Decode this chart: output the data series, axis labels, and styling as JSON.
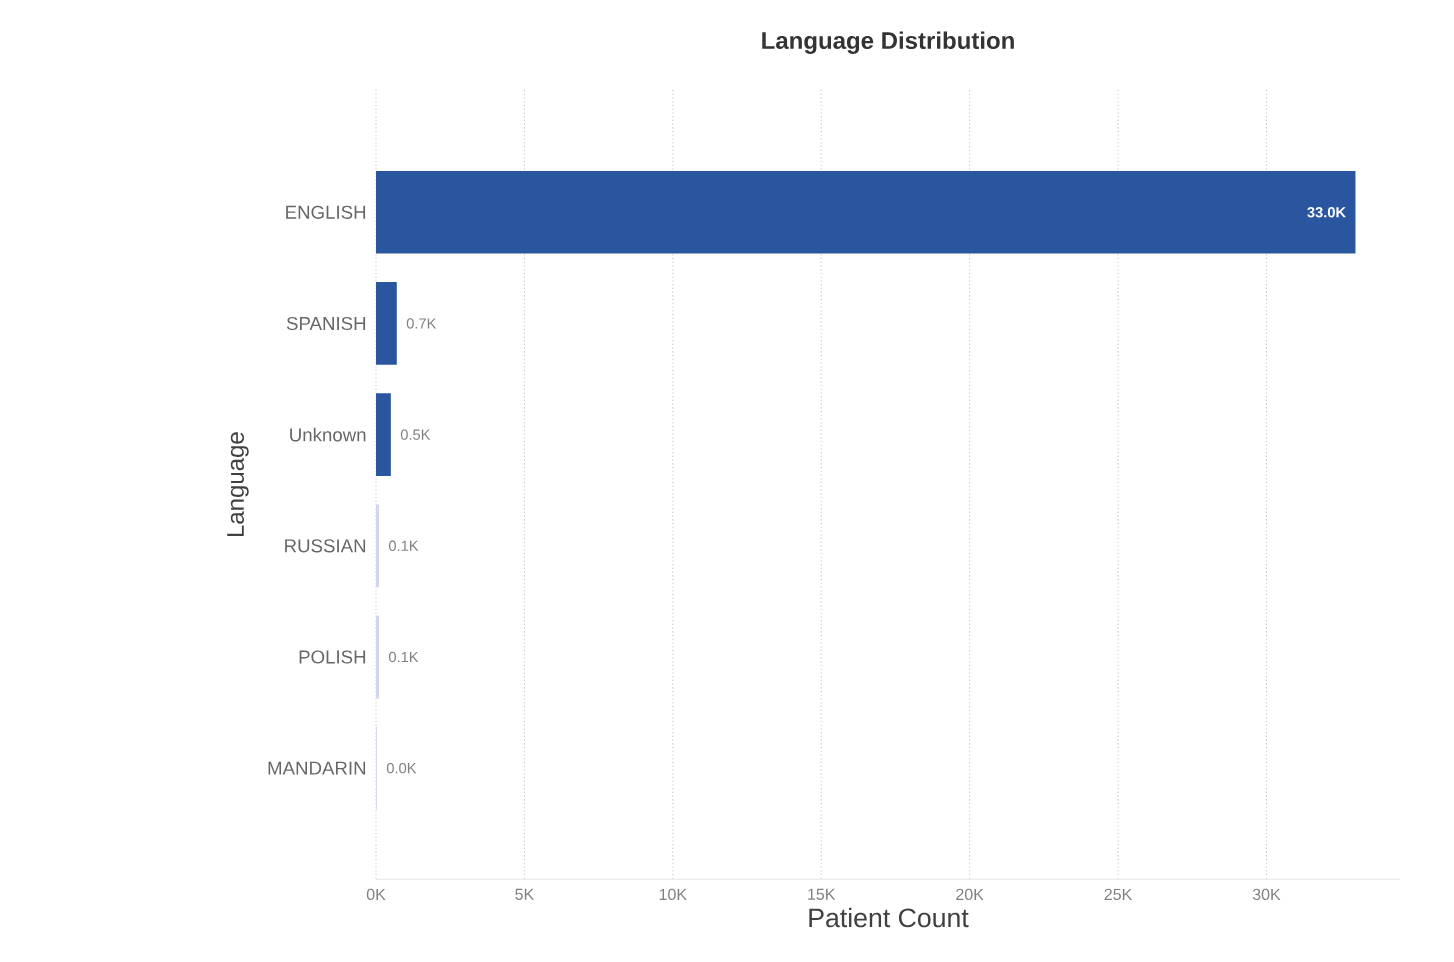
{
  "chart_data": {
    "type": "bar",
    "orientation": "horizontal",
    "title": "Language Distribution",
    "xlabel": "Patient Count",
    "ylabel": "Language",
    "categories": [
      "ENGLISH",
      "SPANISH",
      "Unknown",
      "RUSSIAN",
      "POLISH",
      "MANDARIN"
    ],
    "values": [
      33000,
      700,
      500,
      100,
      100,
      30
    ],
    "value_labels": [
      "33.0K",
      "0.7K",
      "0.5K",
      "0.1K",
      "0.1K",
      "0.0K"
    ],
    "colors": [
      "#2a56a0",
      "#2a56a0",
      "#2a56a0",
      "#d3d6ef",
      "#d3d6ef",
      "#d3d6ef"
    ],
    "xlim": [
      0,
      34500
    ],
    "xticks": [
      {
        "value": 0,
        "label": "0K"
      },
      {
        "value": 5000,
        "label": "5K"
      },
      {
        "value": 10000,
        "label": "10K"
      },
      {
        "value": 15000,
        "label": "15K"
      },
      {
        "value": 20000,
        "label": "20K"
      },
      {
        "value": 25000,
        "label": "25K"
      },
      {
        "value": 30000,
        "label": "30K"
      }
    ],
    "grid": "x"
  }
}
